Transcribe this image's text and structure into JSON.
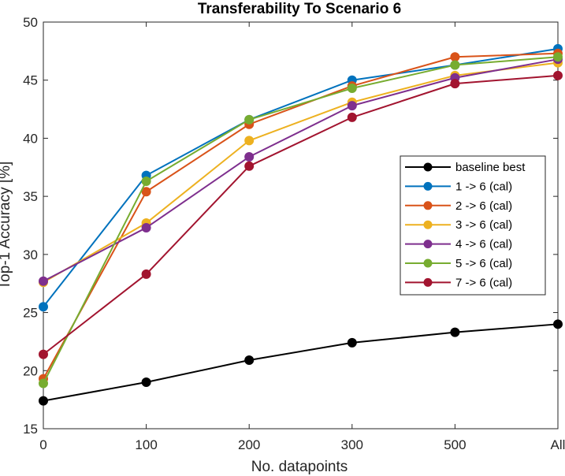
{
  "chart_data": {
    "type": "line",
    "title": "Transferability To Scenario 6",
    "xlabel": "No. datapoints",
    "ylabel": "Top-1 Accuracy [%]",
    "categories": [
      "0",
      "100",
      "200",
      "300",
      "500",
      "All"
    ],
    "ylim": [
      15,
      50
    ],
    "yticks": [
      15,
      20,
      25,
      30,
      35,
      40,
      45,
      50
    ],
    "grid": false,
    "legend_position": "right",
    "series": [
      {
        "name": "baseline best",
        "color": "#000000",
        "values": [
          17.4,
          19.0,
          20.9,
          22.4,
          23.3,
          24.0
        ]
      },
      {
        "name": "1 -> 6 (cal)",
        "color": "#0072BD",
        "values": [
          25.5,
          36.8,
          41.6,
          45.0,
          46.3,
          47.7
        ]
      },
      {
        "name": "2 -> 6 (cal)",
        "color": "#D95319",
        "values": [
          19.3,
          35.4,
          41.2,
          44.5,
          47.0,
          47.3
        ]
      },
      {
        "name": "3 -> 6 (cal)",
        "color": "#EDB120",
        "values": [
          27.6,
          32.7,
          39.8,
          43.1,
          45.4,
          46.5
        ]
      },
      {
        "name": "4 -> 6 (cal)",
        "color": "#7E2F8E",
        "values": [
          27.7,
          32.3,
          38.4,
          42.8,
          45.2,
          46.8
        ]
      },
      {
        "name": "5 -> 6 (cal)",
        "color": "#77AC30",
        "values": [
          18.9,
          36.3,
          41.6,
          44.3,
          46.3,
          47.0
        ]
      },
      {
        "name": "7 -> 6 (cal)",
        "color": "#A2142F",
        "values": [
          21.4,
          28.3,
          37.6,
          41.8,
          44.7,
          45.4
        ]
      }
    ]
  }
}
